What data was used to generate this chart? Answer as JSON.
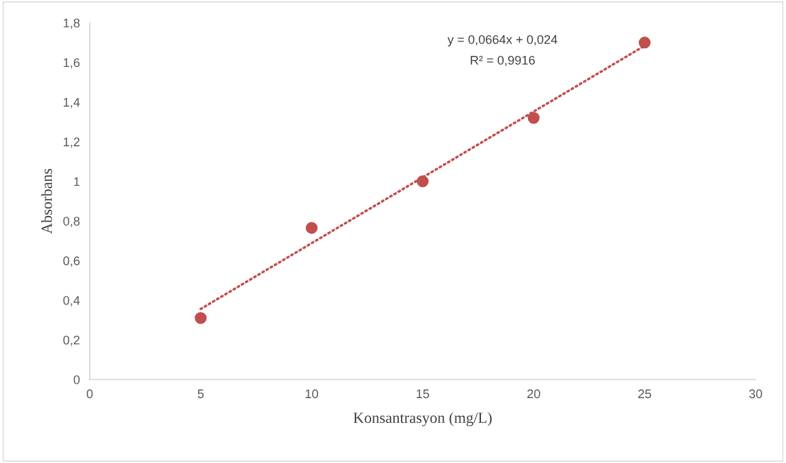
{
  "chart_data": {
    "type": "scatter",
    "xlabel": "Konsantrasyon (mg/L)",
    "ylabel": "Absorbans",
    "series": [
      {
        "color": "#c0504d",
        "x": [
          5,
          10,
          15,
          20,
          25
        ],
        "values": [
          0.31,
          0.765,
          1.0,
          1.32,
          1.7
        ],
        "marker": "circle"
      },
      {
        "type": "line",
        "color": "#c0504d",
        "x": [
          5,
          25
        ],
        "values": [
          0.356,
          1.684
        ],
        "line_style": "dotted",
        "marker": "none"
      }
    ],
    "annotations": [
      "y = 0,0664x + 0,024",
      "R² = 0,9916"
    ],
    "xlim": [
      0,
      30
    ],
    "xticks": [
      0,
      5,
      10,
      15,
      20,
      25,
      30
    ],
    "ylim": [
      0,
      1.8
    ],
    "yticks": [
      0,
      {
        "value": 0.2,
        "label": "0,2"
      },
      {
        "value": 0.4,
        "label": "0,4"
      },
      {
        "value": 0.6,
        "label": "0,6"
      },
      {
        "value": 0.8,
        "label": "0,8"
      },
      1,
      {
        "value": 1.2,
        "label": "1,2"
      },
      {
        "value": 1.4,
        "label": "1,4"
      },
      {
        "value": 1.6,
        "label": "1,6"
      },
      {
        "value": 1.8,
        "label": "1,8"
      }
    ],
    "grid": false,
    "legend": false
  }
}
